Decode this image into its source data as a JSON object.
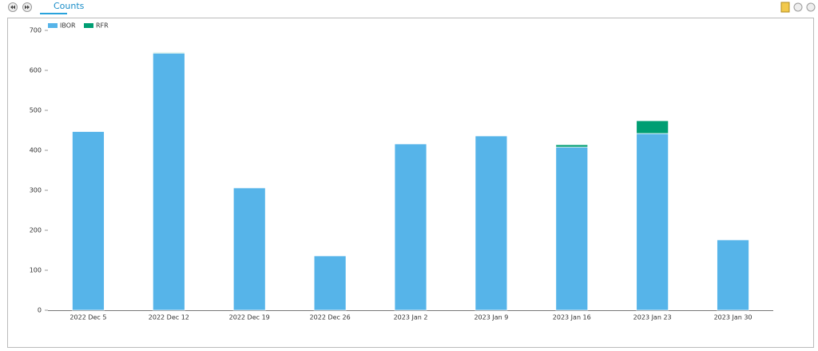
{
  "tab": {
    "label": "Counts"
  },
  "chart_data": {
    "type": "stacked-bar",
    "categories": [
      "2022 Dec 5",
      "2022 Dec 12",
      "2022 Dec 19",
      "2022 Dec 26",
      "2023 Jan 2",
      "2023 Jan 9",
      "2023 Jan 16",
      "2023 Jan 23",
      "2023 Jan 30"
    ],
    "series": [
      {
        "name": "IBOR",
        "color": "#56b4e9",
        "values": [
          447,
          643,
          306,
          136,
          416,
          436,
          408,
          442,
          176
        ]
      },
      {
        "name": "RFR",
        "color": "#009e73",
        "values": [
          0,
          2,
          0,
          0,
          0,
          0,
          6,
          32,
          0
        ]
      }
    ],
    "ylim": [
      0,
      700
    ],
    "yticks": [
      0,
      100,
      200,
      300,
      400,
      500,
      600,
      700
    ],
    "grid": false,
    "legend": "top-left"
  }
}
